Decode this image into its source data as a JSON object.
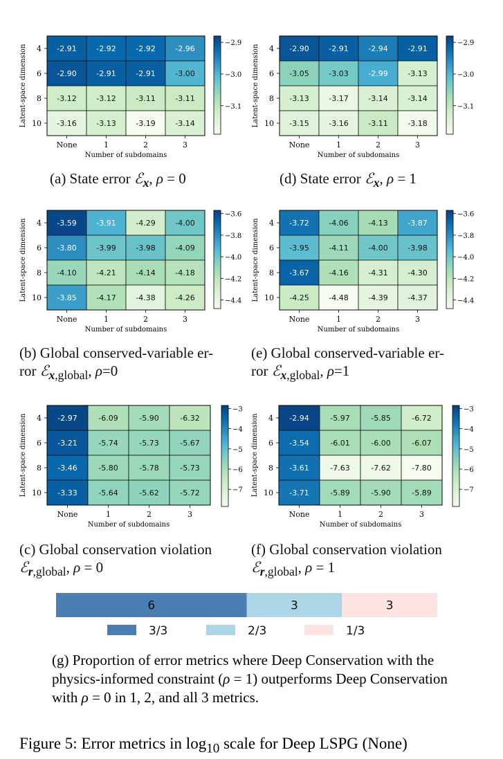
{
  "chart_data": [
    {
      "id": "a",
      "type": "heatmap",
      "caption": "(a) State error ℰₓ, ρ = 0",
      "xlabel": "Number of subdomains",
      "ylabel": "Latent-space dimension",
      "x_categories": [
        "None",
        "1",
        "2",
        "3"
      ],
      "y_categories": [
        "4",
        "6",
        "8",
        "10"
      ],
      "values": [
        [
          -2.91,
          -2.92,
          -2.92,
          -2.96
        ],
        [
          -2.9,
          -2.91,
          -2.91,
          -3.0
        ],
        [
          -3.12,
          -3.12,
          -3.11,
          -3.11
        ],
        [
          -3.16,
          -3.13,
          -3.19,
          -3.14
        ]
      ],
      "cell_labels": [
        [
          "-2.91",
          "-2.92",
          "-2.92",
          "-2.96"
        ],
        [
          "-2.90",
          "-2.91",
          "-2.91",
          "-3.00"
        ],
        [
          "-3.12",
          "-3.12",
          "-3.11",
          "-3.11"
        ],
        [
          "-3.16",
          "-3.13",
          "-3.19",
          "-3.14"
        ]
      ],
      "clim": [
        -3.19,
        -2.88
      ],
      "colorbar_ticks": [
        -2.9,
        -3.0,
        -3.1
      ],
      "colorbar_labels": [
        "−2.9",
        "−3.0",
        "−3.1"
      ],
      "colormap": "GnBu"
    },
    {
      "id": "d",
      "type": "heatmap",
      "caption": "(d) State error ℰₓ, ρ = 1",
      "xlabel": "Number of subdomains",
      "ylabel": "Latent-space dimension",
      "x_categories": [
        "None",
        "1",
        "2",
        "3"
      ],
      "y_categories": [
        "4",
        "6",
        "8",
        "10"
      ],
      "values": [
        [
          -2.9,
          -2.91,
          -2.94,
          -2.91
        ],
        [
          -3.05,
          -3.03,
          -2.99,
          -3.13
        ],
        [
          -3.13,
          -3.17,
          -3.14,
          -3.14
        ],
        [
          -3.15,
          -3.16,
          -3.11,
          -3.18
        ]
      ],
      "cell_labels": [
        [
          "-2.90",
          "-2.91",
          "-2.94",
          "-2.91"
        ],
        [
          "-3.05",
          "-3.03",
          "-2.99",
          "-3.13"
        ],
        [
          "-3.13",
          "-3.17",
          "-3.14",
          "-3.14"
        ],
        [
          "-3.15",
          "-3.16",
          "-3.11",
          "-3.18"
        ]
      ],
      "clim": [
        -3.19,
        -2.88
      ],
      "colorbar_ticks": [
        -2.9,
        -3.0,
        -3.1
      ],
      "colorbar_labels": [
        "−2.9",
        "−3.0",
        "−3.1"
      ],
      "colormap": "GnBu"
    },
    {
      "id": "b",
      "type": "heatmap",
      "caption": "(b) Global conserved-variable er-ror ℰₓ,global, ρ=0",
      "xlabel": "Number of subdomains",
      "ylabel": "Latent-space dimension",
      "x_categories": [
        "None",
        "1",
        "2",
        "3"
      ],
      "y_categories": [
        "4",
        "6",
        "8",
        "10"
      ],
      "values": [
        [
          -3.59,
          -3.91,
          -4.29,
          -4.0
        ],
        [
          -3.8,
          -3.99,
          -3.98,
          -4.09
        ],
        [
          -4.1,
          -4.21,
          -4.14,
          -4.18
        ],
        [
          -3.85,
          -4.17,
          -4.38,
          -4.26
        ]
      ],
      "cell_labels": [
        [
          "-3.59",
          "-3.91",
          "-4.29",
          "-4.00"
        ],
        [
          "-3.80",
          "-3.99",
          "-3.98",
          "-4.09"
        ],
        [
          "-4.10",
          "-4.21",
          "-4.14",
          "-4.18"
        ],
        [
          "-3.85",
          "-4.17",
          "-4.38",
          "-4.26"
        ]
      ],
      "clim": [
        -4.48,
        -3.57
      ],
      "colorbar_ticks": [
        -3.6,
        -3.8,
        -4.0,
        -4.2,
        -4.4
      ],
      "colorbar_labels": [
        "−3.6",
        "−3.8",
        "−4.0",
        "−4.2",
        "−4.4"
      ],
      "colormap": "GnBu"
    },
    {
      "id": "e",
      "type": "heatmap",
      "caption": "(e) Global conserved-variable er-ror ℰₓ,global, ρ=1",
      "xlabel": "Number of subdomains",
      "ylabel": "Latent-space dimension",
      "x_categories": [
        "None",
        "1",
        "2",
        "3"
      ],
      "y_categories": [
        "4",
        "6",
        "8",
        "10"
      ],
      "values": [
        [
          -3.72,
          -4.06,
          -4.13,
          -3.87
        ],
        [
          -3.95,
          -4.11,
          -4.0,
          -3.98
        ],
        [
          -3.67,
          -4.16,
          -4.31,
          -4.3
        ],
        [
          -4.25,
          -4.48,
          -4.39,
          -4.37
        ]
      ],
      "cell_labels": [
        [
          "-3.72",
          "-4.06",
          "-4.13",
          "-3.87"
        ],
        [
          "-3.95",
          "-4.11",
          "-4.00",
          "-3.98"
        ],
        [
          "-3.67",
          "-4.16",
          "-4.31",
          "-4.30"
        ],
        [
          "-4.25",
          "-4.48",
          "-4.39",
          "-4.37"
        ]
      ],
      "clim": [
        -4.48,
        -3.57
      ],
      "colorbar_ticks": [
        -3.6,
        -3.8,
        -4.0,
        -4.2,
        -4.4
      ],
      "colorbar_labels": [
        "−3.6",
        "−3.8",
        "−4.0",
        "−4.2",
        "−4.4"
      ],
      "colormap": "GnBu"
    },
    {
      "id": "c",
      "type": "heatmap",
      "caption": "(c) Global conservation violation ℰᵣ,global, ρ = 0",
      "xlabel": "Number of subdomains",
      "ylabel": "Latent-space dimension",
      "x_categories": [
        "None",
        "1",
        "2",
        "3"
      ],
      "y_categories": [
        "4",
        "6",
        "8",
        "10"
      ],
      "values": [
        [
          -2.97,
          -6.09,
          -5.9,
          -6.32
        ],
        [
          -3.21,
          -5.74,
          -5.73,
          -5.67
        ],
        [
          -3.46,
          -5.8,
          -5.78,
          -5.73
        ],
        [
          -3.33,
          -5.64,
          -5.62,
          -5.72
        ]
      ],
      "cell_labels": [
        [
          "-2.97",
          "-6.09",
          "-5.90",
          "-6.32"
        ],
        [
          "-3.21",
          "-5.74",
          "-5.73",
          "-5.67"
        ],
        [
          "-3.46",
          "-5.80",
          "-5.78",
          "-5.73"
        ],
        [
          "-3.33",
          "-5.64",
          "-5.62",
          "-5.72"
        ]
      ],
      "clim": [
        -7.85,
        -2.85
      ],
      "colorbar_ticks": [
        -3,
        -4,
        -5,
        -6,
        -7
      ],
      "colorbar_labels": [
        "−3",
        "−4",
        "−5",
        "−6",
        "−7"
      ],
      "colormap": "GnBu"
    },
    {
      "id": "f",
      "type": "heatmap",
      "caption": "(f) Global conservation violation ℰᵣ,global, ρ = 1",
      "xlabel": "Number of subdomains",
      "ylabel": "Latent-space dimension",
      "x_categories": [
        "None",
        "1",
        "2",
        "3"
      ],
      "y_categories": [
        "4",
        "6",
        "8",
        "10"
      ],
      "values": [
        [
          -2.94,
          -5.97,
          -5.85,
          -6.72
        ],
        [
          -3.54,
          -6.01,
          -6.0,
          -6.07
        ],
        [
          -3.61,
          -7.63,
          -7.62,
          -7.8
        ],
        [
          -3.71,
          -5.89,
          -5.9,
          -5.89
        ]
      ],
      "cell_labels": [
        [
          "-2.94",
          "-5.97",
          "-5.85",
          "-6.72"
        ],
        [
          "-3.54",
          "-6.01",
          "-6.00",
          "-6.07"
        ],
        [
          "-3.61",
          "-7.63",
          "-7.62",
          "-7.80"
        ],
        [
          "-3.71",
          "-5.89",
          "-5.90",
          "-5.89"
        ]
      ],
      "clim": [
        -7.85,
        -2.85
      ],
      "colorbar_ticks": [
        -3,
        -4,
        -5,
        -6,
        -7
      ],
      "colorbar_labels": [
        "−3",
        "−4",
        "−5",
        "−6",
        "−7"
      ],
      "colormap": "GnBu"
    },
    {
      "id": "g",
      "type": "bar",
      "orientation": "horizontal-stacked",
      "categories": [
        "3/3",
        "2/3",
        "1/3"
      ],
      "values": [
        6,
        3,
        3
      ],
      "value_labels": [
        "6",
        "3",
        "3"
      ],
      "colors": [
        "#4a7fb4",
        "#acd6e6",
        "#fde3e2"
      ],
      "legend": [
        "3/3",
        "2/3",
        "1/3"
      ],
      "legend_position": "bottom"
    }
  ],
  "captions": {
    "g": "(g) Proportion of error metrics where Deep Conservation with the physics-informed constraint (ρ = 1) outperforms Deep Conservation with ρ = 0 in 1, 2, and all 3 metrics.",
    "figure": "Figure 5: Error metrics in log₁₀ scale for Deep LSPG (None)"
  },
  "colors": {
    "cmap_stops": [
      "#f7fcf0",
      "#e0f3db",
      "#ccebc5",
      "#a8ddb5",
      "#7bccc4",
      "#4eb3d3",
      "#2b8cbe",
      "#0868ac",
      "#084081"
    ]
  }
}
